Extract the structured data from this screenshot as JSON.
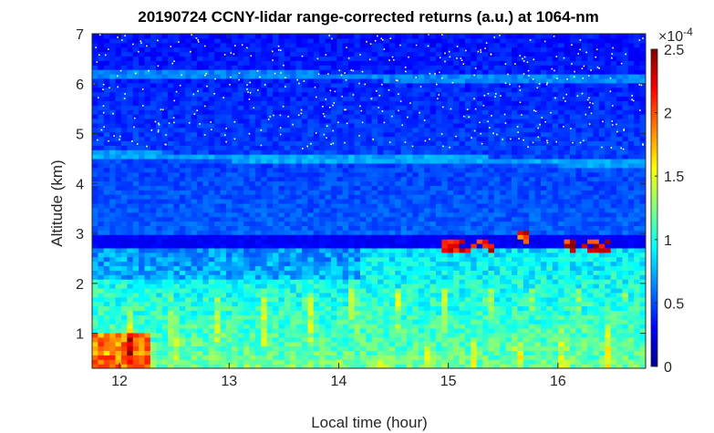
{
  "chart_data": {
    "type": "heatmap",
    "title": "20190724 CCNY-lidar range-corrected returns (a.u.) at 1064-nm",
    "xlabel": "Local time (hour)",
    "ylabel": "Altitude (km)",
    "xlim": [
      11.75,
      16.8
    ],
    "ylim": [
      0.3,
      7
    ],
    "x_ticks": [
      "12",
      "13",
      "14",
      "15",
      "16"
    ],
    "x_tick_values": [
      12,
      13,
      14,
      15,
      16
    ],
    "y_ticks": [
      "1",
      "2",
      "3",
      "4",
      "5",
      "6",
      "7"
    ],
    "y_tick_values": [
      1,
      2,
      3,
      4,
      5,
      6,
      7
    ],
    "colorbar": {
      "label": "",
      "exponent_label": "×10",
      "exponent": "-4",
      "range": [
        0,
        2.5
      ],
      "ticks": [
        "0",
        "0.5",
        "1",
        "1.5",
        "2",
        "2.5"
      ],
      "tick_values": [
        0,
        0.5,
        1,
        1.5,
        2,
        2.5
      ],
      "colormap": "jet"
    },
    "grid": false,
    "features": {
      "boundary_layer_top_km": 2.85,
      "cloud_layers": [
        {
          "x_start": 14.95,
          "x_end": 15.4,
          "altitude_km": 2.75,
          "value": 2.5
        },
        {
          "x_start": 15.65,
          "x_end": 15.75,
          "altitude_km": 2.95,
          "value": 2.4
        },
        {
          "x_start": 16.05,
          "x_end": 16.5,
          "altitude_km": 2.75,
          "value": 2.5
        }
      ],
      "aerosol_layers_km": [
        4.55,
        6.2
      ]
    }
  }
}
